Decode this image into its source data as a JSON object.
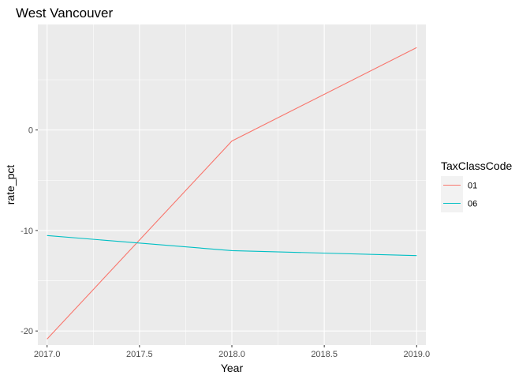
{
  "chart_data": {
    "type": "line",
    "title": "West Vancouver",
    "xlabel": "Year",
    "ylabel": "rate_pct",
    "xlim": [
      2016.95,
      2019.05
    ],
    "ylim": [
      -21.4,
      10.5
    ],
    "x_ticks": [
      "2017.0",
      "2017.5",
      "2018.0",
      "2018.5",
      "2019.0"
    ],
    "y_ticks": [
      "-20",
      "-10",
      "0"
    ],
    "x_tick_values": [
      2017.0,
      2017.5,
      2018.0,
      2018.5,
      2019.0
    ],
    "y_tick_values": [
      -20,
      -10,
      0
    ],
    "grid": true,
    "legend": {
      "title": "TaxClassCode",
      "position": "right",
      "entries": [
        "01",
        "06"
      ]
    },
    "series": [
      {
        "name": "01",
        "color": "#F8766D",
        "x": [
          2017,
          2018,
          2019
        ],
        "y": [
          -20.8,
          -1.1,
          8.2
        ]
      },
      {
        "name": "06",
        "color": "#00BFC4",
        "x": [
          2017,
          2018,
          2019
        ],
        "y": [
          -10.5,
          -12.0,
          -12.5
        ]
      }
    ]
  }
}
